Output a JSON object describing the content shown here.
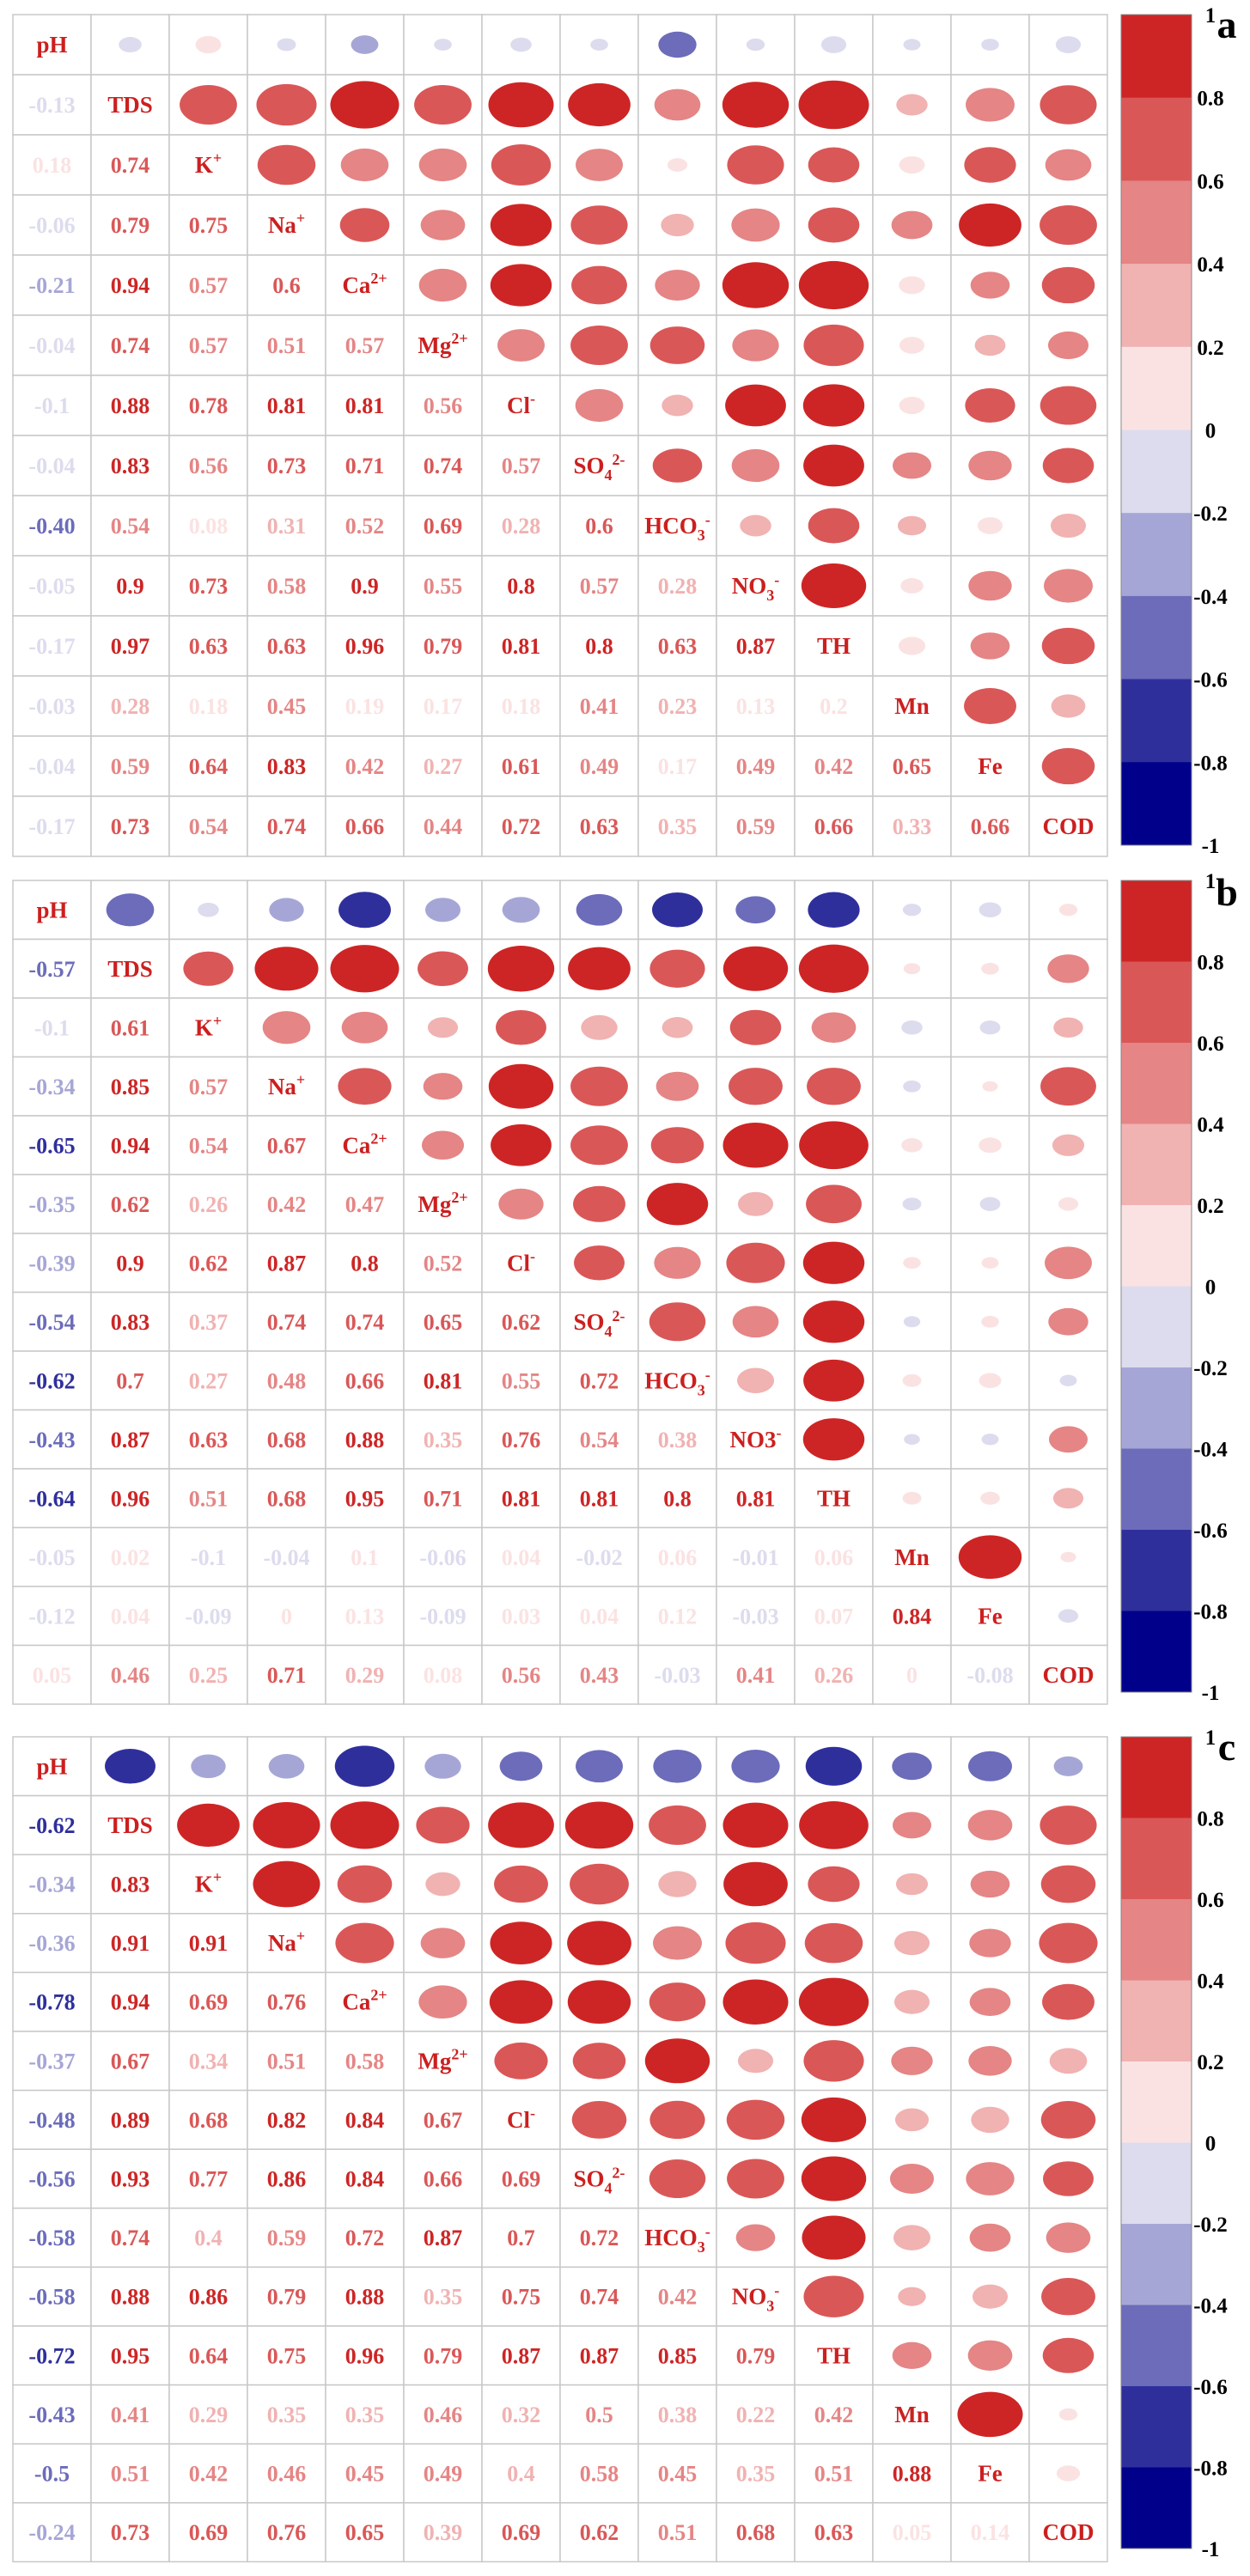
{
  "chart_data": [
    {
      "type": "heatmap",
      "panel_label": "a",
      "variables": [
        "pH",
        "TDS",
        "K+",
        "Na+",
        "Ca2+",
        "Mg2+",
        "Cl-",
        "SO42-",
        "HCO3-",
        "NO3-",
        "TH",
        "Mn",
        "Fe",
        "COD"
      ],
      "labels_display": [
        "pH",
        "TDS",
        "K|+",
        "Na|+",
        "Ca|2+",
        "Mg|2+",
        "Cl|-",
        "SO|4|2-",
        "HCO|3|-",
        "NO|3|-",
        "TH",
        "Mn",
        "Fe",
        "COD"
      ],
      "value_labels": [
        [
          "",
          "",
          "",
          "",
          "",
          "",
          "",
          "",
          "",
          "",
          "",
          "",
          "",
          ""
        ],
        [
          "-0.13",
          "",
          "",
          "",
          "",
          "",
          "",
          "",
          "",
          "",
          "",
          "",
          "",
          ""
        ],
        [
          "0.18",
          "0.74",
          "",
          "",
          "",
          "",
          "",
          "",
          "",
          "",
          "",
          "",
          "",
          ""
        ],
        [
          "-0.06",
          "0.79",
          "0.75",
          "",
          "",
          "",
          "",
          "",
          "",
          "",
          "",
          "",
          "",
          ""
        ],
        [
          "-0.21",
          "0.94",
          "0.57",
          "0.6",
          "",
          "",
          "",
          "",
          "",
          "",
          "",
          "",
          "",
          ""
        ],
        [
          "-0.04",
          "0.74",
          "0.57",
          "0.51",
          "0.57",
          "",
          "",
          "",
          "",
          "",
          "",
          "",
          "",
          ""
        ],
        [
          "-0.1",
          "0.88",
          "0.78",
          "0.81",
          "0.81",
          "0.56",
          "",
          "",
          "",
          "",
          "",
          "",
          "",
          ""
        ],
        [
          "-0.04",
          "0.83",
          "0.56",
          "0.73",
          "0.71",
          "0.74",
          "0.57",
          "",
          "",
          "",
          "",
          "",
          "",
          ""
        ],
        [
          "-0.40",
          "0.54",
          "0.08",
          "0.31",
          "0.52",
          "0.69",
          "0.28",
          "0.6",
          "",
          "",
          "",
          "",
          "",
          ""
        ],
        [
          "-0.05",
          "0.9",
          "0.73",
          "0.58",
          "0.9",
          "0.55",
          "0.8",
          "0.57",
          "0.28",
          "",
          "",
          "",
          "",
          ""
        ],
        [
          "-0.17",
          "0.97",
          "0.63",
          "0.63",
          "0.96",
          "0.79",
          "0.81",
          "0.8",
          "0.63",
          "0.87",
          "",
          "",
          "",
          ""
        ],
        [
          "-0.03",
          "0.28",
          "0.18",
          "0.45",
          "0.19",
          "0.17",
          "0.18",
          "0.41",
          "0.23",
          "0.13",
          "0.2",
          "",
          "",
          ""
        ],
        [
          "-0.04",
          "0.59",
          "0.64",
          "0.83",
          "0.42",
          "0.27",
          "0.61",
          "0.49",
          "0.17",
          "0.49",
          "0.42",
          "0.65",
          "",
          ""
        ],
        [
          "-0.17",
          "0.73",
          "0.54",
          "0.74",
          "0.66",
          "0.44",
          "0.72",
          "0.63",
          "0.35",
          "0.59",
          "0.66",
          "0.33",
          "0.66",
          ""
        ]
      ],
      "colorbar": {
        "ticks": [
          "1",
          "0.8",
          "0.6",
          "0.4",
          "0.2",
          "0",
          "-0.2",
          "-0.4",
          "-0.6",
          "-0.8",
          "-1"
        ],
        "range": [
          -1,
          1
        ]
      }
    },
    {
      "type": "heatmap",
      "panel_label": "b",
      "variables": [
        "pH",
        "TDS",
        "K+",
        "Na+",
        "Ca2+",
        "Mg2+",
        "Cl-",
        "SO42-",
        "HCO3-",
        "NO3-",
        "TH",
        "Mn",
        "Fe",
        "COD"
      ],
      "labels_display": [
        "pH",
        "TDS",
        "K|+",
        "Na|+",
        "Ca|2+",
        "Mg|2+",
        "Cl|-",
        "SO|4|2-",
        "HCO|3|-",
        "NO3|-",
        "TH",
        "Mn",
        "Fe",
        "COD"
      ],
      "value_labels": [
        [
          "",
          "",
          "",
          "",
          "",
          "",
          "",
          "",
          "",
          "",
          "",
          "",
          "",
          ""
        ],
        [
          "-0.57",
          "",
          "",
          "",
          "",
          "",
          "",
          "",
          "",
          "",
          "",
          "",
          "",
          ""
        ],
        [
          "-0.1",
          "0.61",
          "",
          "",
          "",
          "",
          "",
          "",
          "",
          "",
          "",
          "",
          "",
          ""
        ],
        [
          "-0.34",
          "0.85",
          "0.57",
          "",
          "",
          "",
          "",
          "",
          "",
          "",
          "",
          "",
          "",
          ""
        ],
        [
          "-0.65",
          "0.94",
          "0.54",
          "0.67",
          "",
          "",
          "",
          "",
          "",
          "",
          "",
          "",
          "",
          ""
        ],
        [
          "-0.35",
          "0.62",
          "0.26",
          "0.42",
          "0.47",
          "",
          "",
          "",
          "",
          "",
          "",
          "",
          "",
          ""
        ],
        [
          "-0.39",
          "0.9",
          "0.62",
          "0.87",
          "0.8",
          "0.52",
          "",
          "",
          "",
          "",
          "",
          "",
          "",
          ""
        ],
        [
          "-0.54",
          "0.83",
          "0.37",
          "0.74",
          "0.74",
          "0.65",
          "0.62",
          "",
          "",
          "",
          "",
          "",
          "",
          ""
        ],
        [
          "-0.62",
          "0.7",
          "0.27",
          "0.48",
          "0.66",
          "0.81",
          "0.55",
          "0.72",
          "",
          "",
          "",
          "",
          "",
          ""
        ],
        [
          "-0.43",
          "0.87",
          "0.63",
          "0.68",
          "0.88",
          "0.35",
          "0.76",
          "0.54",
          "0.38",
          "",
          "",
          "",
          "",
          ""
        ],
        [
          "-0.64",
          "0.96",
          "0.51",
          "0.68",
          "0.95",
          "0.71",
          "0.81",
          "0.81",
          "0.8",
          "0.81",
          "",
          "",
          "",
          ""
        ],
        [
          "-0.05",
          "0.02",
          "-0.1",
          "-0.04",
          "0.1",
          "-0.06",
          "0.04",
          "-0.02",
          "0.06",
          "-0.01",
          "0.06",
          "",
          "",
          ""
        ],
        [
          "-0.12",
          "0.04",
          "-0.09",
          "0",
          "0.13",
          "-0.09",
          "0.03",
          "0.04",
          "0.12",
          "-0.03",
          "0.07",
          "0.84",
          "",
          ""
        ],
        [
          "0.05",
          "0.46",
          "0.25",
          "0.71",
          "0.29",
          "0.08",
          "0.56",
          "0.43",
          "-0.03",
          "0.41",
          "0.26",
          "0",
          "-0.08",
          ""
        ]
      ],
      "colorbar": {
        "ticks": [
          "1",
          "0.8",
          "0.6",
          "0.4",
          "0.2",
          "0",
          "-0.2",
          "-0.4",
          "-0.6",
          "-0.8",
          "-1"
        ],
        "range": [
          -1,
          1
        ]
      }
    },
    {
      "type": "heatmap",
      "panel_label": "c",
      "variables": [
        "pH",
        "TDS",
        "K+",
        "Na+",
        "Ca2+",
        "Mg2+",
        "Cl-",
        "SO42-",
        "HCO3-",
        "NO3-",
        "TH",
        "Mn",
        "Fe",
        "COD"
      ],
      "labels_display": [
        "pH",
        "TDS",
        "K|+",
        "Na|+",
        "Ca|2+",
        "Mg|2+",
        "Cl|-",
        "SO|4|2-",
        "HCO|3|-",
        "NO|3|-",
        "TH",
        "Mn",
        "Fe",
        "COD"
      ],
      "value_labels": [
        [
          "",
          "",
          "",
          "",
          "",
          "",
          "",
          "",
          "",
          "",
          "",
          "",
          "",
          ""
        ],
        [
          "-0.62",
          "",
          "",
          "",
          "",
          "",
          "",
          "",
          "",
          "",
          "",
          "",
          "",
          ""
        ],
        [
          "-0.34",
          "0.83",
          "",
          "",
          "",
          "",
          "",
          "",
          "",
          "",
          "",
          "",
          "",
          ""
        ],
        [
          "-0.36",
          "0.91",
          "0.91",
          "",
          "",
          "",
          "",
          "",
          "",
          "",
          "",
          "",
          "",
          ""
        ],
        [
          "-0.78",
          "0.94",
          "0.69",
          "0.76",
          "",
          "",
          "",
          "",
          "",
          "",
          "",
          "",
          "",
          ""
        ],
        [
          "-0.37",
          "0.67",
          "0.34",
          "0.51",
          "0.58",
          "",
          "",
          "",
          "",
          "",
          "",
          "",
          "",
          ""
        ],
        [
          "-0.48",
          "0.89",
          "0.68",
          "0.82",
          "0.84",
          "0.67",
          "",
          "",
          "",
          "",
          "",
          "",
          "",
          ""
        ],
        [
          "-0.56",
          "0.93",
          "0.77",
          "0.86",
          "0.84",
          "0.66",
          "0.69",
          "",
          "",
          "",
          "",
          "",
          "",
          ""
        ],
        [
          "-0.58",
          "0.74",
          "0.4",
          "0.59",
          "0.72",
          "0.87",
          "0.7",
          "0.72",
          "",
          "",
          "",
          "",
          "",
          ""
        ],
        [
          "-0.58",
          "0.88",
          "0.86",
          "0.79",
          "0.88",
          "0.35",
          "0.75",
          "0.74",
          "0.42",
          "",
          "",
          "",
          "",
          ""
        ],
        [
          "-0.72",
          "0.95",
          "0.64",
          "0.75",
          "0.96",
          "0.79",
          "0.87",
          "0.87",
          "0.85",
          "0.79",
          "",
          "",
          "",
          ""
        ],
        [
          "-0.43",
          "0.41",
          "0.29",
          "0.35",
          "0.35",
          "0.46",
          "0.32",
          "0.5",
          "0.38",
          "0.22",
          "0.42",
          "",
          "",
          ""
        ],
        [
          "-0.5",
          "0.51",
          "0.42",
          "0.46",
          "0.45",
          "0.49",
          "0.4",
          "0.58",
          "0.45",
          "0.35",
          "0.51",
          "0.88",
          "",
          ""
        ],
        [
          "-0.24",
          "0.73",
          "0.69",
          "0.76",
          "0.65",
          "0.39",
          "0.69",
          "0.62",
          "0.51",
          "0.68",
          "0.63",
          "0.05",
          "0.14",
          ""
        ]
      ],
      "colorbar": {
        "ticks": [
          "1",
          "0.8",
          "0.6",
          "0.4",
          "0.2",
          "0",
          "-0.2",
          "-0.4",
          "-0.6",
          "-0.8",
          "-1"
        ],
        "range": [
          -1,
          1
        ]
      }
    }
  ],
  "colors": {
    "scale": [
      "#00008b",
      "#2f2f9c",
      "#6c6cbb",
      "#a6a6d6",
      "#dcdcee",
      "#fbe2e2",
      "#f1b2b2",
      "#e58585",
      "#da5757",
      "#cd2525"
    ],
    "label_red": "#cc1f1f",
    "grid": "#c8c8c8"
  }
}
